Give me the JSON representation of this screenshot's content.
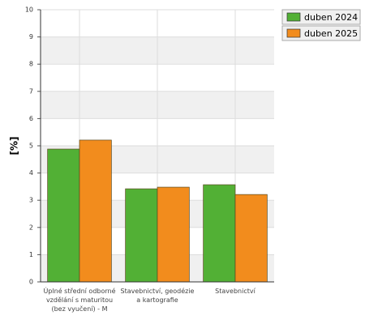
{
  "chart_data": {
    "type": "bar",
    "y_label": "[%]",
    "categories": [
      "Úplné střední odborné vzdělání s maturitou (bez vyučení) - M",
      "Stavebnictví, geodézie a kartografie",
      "Stavebnictví"
    ],
    "series": [
      {
        "name": "duben 2024",
        "color": "#52b035",
        "values": [
          4.88,
          3.42,
          3.57
        ]
      },
      {
        "name": "duben 2025",
        "color": "#f28c1d",
        "values": [
          5.21,
          3.48,
          3.21
        ]
      }
    ],
    "ylim": [
      0,
      10
    ],
    "yticks": [
      0,
      1,
      2,
      3,
      4,
      5,
      6,
      7,
      8,
      9,
      10
    ],
    "grid": true,
    "alternating_bands": true,
    "legend": "top-right"
  }
}
